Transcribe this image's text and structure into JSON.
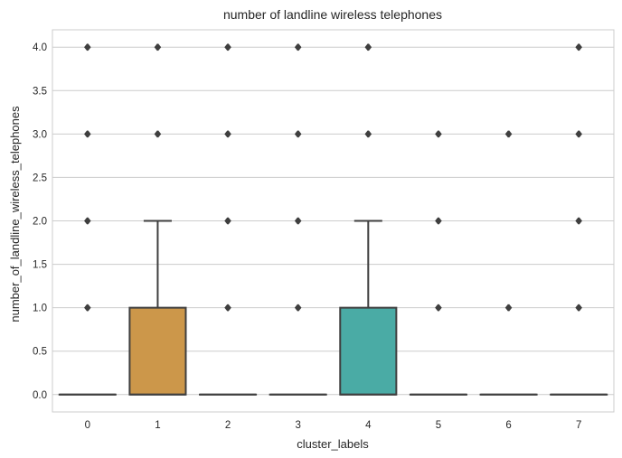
{
  "chart_data": {
    "type": "box",
    "title": "number of landline wireless telephones",
    "xlabel": "cluster_labels",
    "ylabel": "number_of_landline_wireless_telephones",
    "categories": [
      "0",
      "1",
      "2",
      "3",
      "4",
      "5",
      "6",
      "7"
    ],
    "ylim": [
      -0.2,
      4.2
    ],
    "yticks": [
      "0.0",
      "0.5",
      "1.0",
      "1.5",
      "2.0",
      "2.5",
      "3.0",
      "3.5",
      "4.0"
    ],
    "grid": true,
    "boxes": [
      {
        "category": "0",
        "q1": 0,
        "median": 0,
        "q3": 0,
        "whisker_low": 0,
        "whisker_high": 0,
        "outliers": [
          1,
          2,
          3,
          4
        ],
        "color": "#3274a1"
      },
      {
        "category": "1",
        "q1": 0,
        "median": 0,
        "q3": 1,
        "whisker_low": 0,
        "whisker_high": 2,
        "outliers": [
          3,
          4
        ],
        "color": "#cc974a"
      },
      {
        "category": "2",
        "q1": 0,
        "median": 0,
        "q3": 0,
        "whisker_low": 0,
        "whisker_high": 0,
        "outliers": [
          1,
          2,
          3,
          4
        ],
        "color": "#3a923a"
      },
      {
        "category": "3",
        "q1": 0,
        "median": 0,
        "q3": 0,
        "whisker_low": 0,
        "whisker_high": 0,
        "outliers": [
          1,
          2,
          3,
          4
        ],
        "color": "#c03d3e"
      },
      {
        "category": "4",
        "q1": 0,
        "median": 0,
        "q3": 1,
        "whisker_low": 0,
        "whisker_high": 2,
        "outliers": [
          3,
          4
        ],
        "color": "#4aaba5"
      },
      {
        "category": "5",
        "q1": 0,
        "median": 0,
        "q3": 0,
        "whisker_low": 0,
        "whisker_high": 0,
        "outliers": [
          1,
          2,
          3
        ],
        "color": "#9372b2"
      },
      {
        "category": "6",
        "q1": 0,
        "median": 0,
        "q3": 0,
        "whisker_low": 0,
        "whisker_high": 0,
        "outliers": [
          1,
          3
        ],
        "color": "#845b53"
      },
      {
        "category": "7",
        "q1": 0,
        "median": 0,
        "q3": 0,
        "whisker_low": 0,
        "whisker_high": 0,
        "outliers": [
          1,
          2,
          3,
          4
        ],
        "color": "#d684bd"
      }
    ],
    "line_color": "#3f3f3f",
    "grid_color": "#cccccc"
  }
}
